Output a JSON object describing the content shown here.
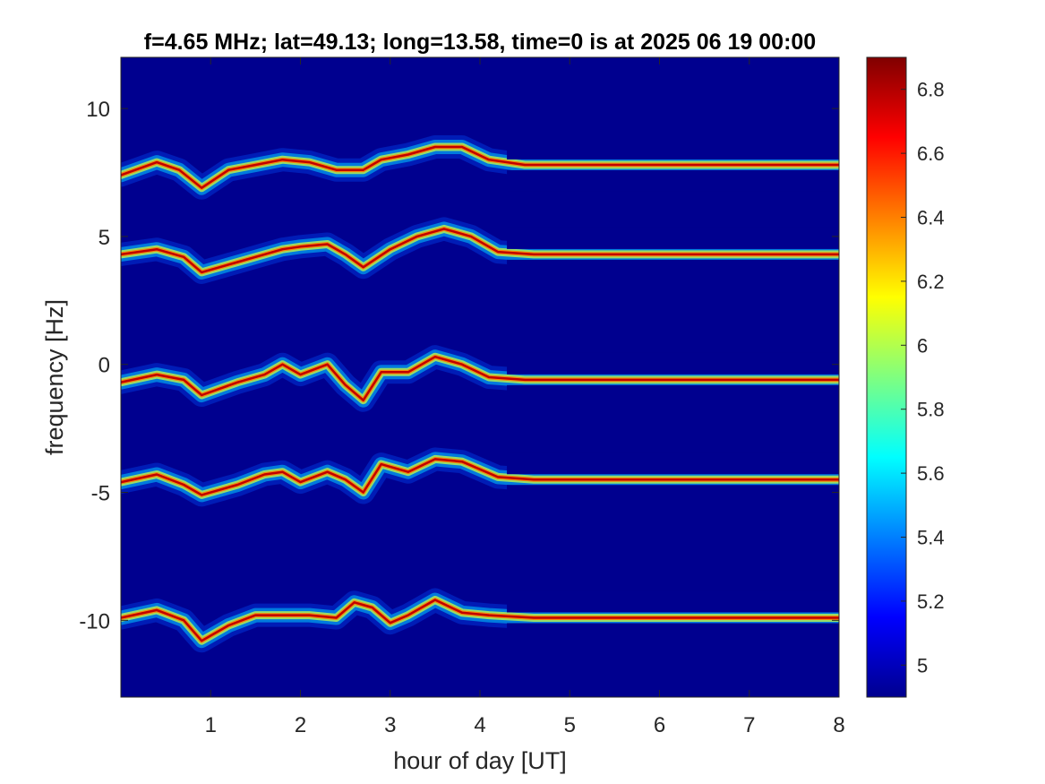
{
  "chart_data": {
    "type": "heatmap",
    "title": "f=4.65 MHz;  lat=49.13; long=13.58, time=0 is at 2025 06 19 00:00",
    "xlabel": "hour of day [UT]",
    "ylabel": "frequency [Hz]",
    "xlim": [
      0,
      8
    ],
    "ylim": [
      -13,
      12
    ],
    "x_ticks": [
      1,
      2,
      3,
      4,
      5,
      6,
      7,
      8
    ],
    "y_ticks": [
      10,
      5,
      0,
      -5,
      -10
    ],
    "colormap": "jet",
    "background_color": "#00008f",
    "colorbar": {
      "range": [
        4.9,
        6.9
      ],
      "ticks": [
        6.8,
        6.6,
        6.4,
        6.2,
        6,
        5.8,
        5.6,
        5.4,
        5.2,
        5
      ]
    },
    "traces": [
      {
        "offset": 8,
        "points": [
          [
            0,
            7.4
          ],
          [
            0.4,
            7.9
          ],
          [
            0.65,
            7.6
          ],
          [
            0.9,
            6.9
          ],
          [
            1.2,
            7.6
          ],
          [
            1.5,
            7.8
          ],
          [
            1.8,
            8.0
          ],
          [
            2.1,
            7.9
          ],
          [
            2.4,
            7.6
          ],
          [
            2.7,
            7.6
          ],
          [
            2.9,
            8.0
          ],
          [
            3.2,
            8.2
          ],
          [
            3.5,
            8.5
          ],
          [
            3.8,
            8.5
          ],
          [
            4.1,
            8.0
          ],
          [
            4.5,
            7.8
          ],
          [
            5,
            7.8
          ],
          [
            6,
            7.8
          ],
          [
            7,
            7.8
          ],
          [
            8,
            7.8
          ]
        ]
      },
      {
        "offset": 4.5,
        "points": [
          [
            0,
            4.3
          ],
          [
            0.4,
            4.5
          ],
          [
            0.7,
            4.2
          ],
          [
            0.9,
            3.6
          ],
          [
            1.3,
            4.0
          ],
          [
            1.6,
            4.3
          ],
          [
            1.8,
            4.5
          ],
          [
            2.0,
            4.6
          ],
          [
            2.3,
            4.7
          ],
          [
            2.5,
            4.3
          ],
          [
            2.7,
            3.8
          ],
          [
            3.0,
            4.5
          ],
          [
            3.3,
            5.0
          ],
          [
            3.6,
            5.3
          ],
          [
            3.9,
            5.0
          ],
          [
            4.2,
            4.4
          ],
          [
            4.6,
            4.3
          ],
          [
            5.5,
            4.3
          ],
          [
            8,
            4.3
          ]
        ]
      },
      {
        "offset": -0.5,
        "points": [
          [
            0,
            -0.7
          ],
          [
            0.4,
            -0.4
          ],
          [
            0.7,
            -0.6
          ],
          [
            0.9,
            -1.2
          ],
          [
            1.3,
            -0.7
          ],
          [
            1.6,
            -0.4
          ],
          [
            1.8,
            0.0
          ],
          [
            2.0,
            -0.4
          ],
          [
            2.3,
            0.0
          ],
          [
            2.5,
            -0.8
          ],
          [
            2.7,
            -1.4
          ],
          [
            2.9,
            -0.3
          ],
          [
            3.2,
            -0.3
          ],
          [
            3.5,
            0.3
          ],
          [
            3.8,
            0.0
          ],
          [
            4.1,
            -0.5
          ],
          [
            4.5,
            -0.6
          ],
          [
            5.5,
            -0.6
          ],
          [
            8,
            -0.6
          ]
        ]
      },
      {
        "offset": -4.5,
        "points": [
          [
            0,
            -4.6
          ],
          [
            0.4,
            -4.3
          ],
          [
            0.7,
            -4.7
          ],
          [
            0.9,
            -5.1
          ],
          [
            1.3,
            -4.7
          ],
          [
            1.6,
            -4.3
          ],
          [
            1.8,
            -4.2
          ],
          [
            2.0,
            -4.6
          ],
          [
            2.3,
            -4.2
          ],
          [
            2.5,
            -4.5
          ],
          [
            2.7,
            -5.0
          ],
          [
            2.9,
            -3.9
          ],
          [
            3.2,
            -4.2
          ],
          [
            3.5,
            -3.7
          ],
          [
            3.8,
            -3.8
          ],
          [
            4.2,
            -4.4
          ],
          [
            4.6,
            -4.5
          ],
          [
            5.5,
            -4.5
          ],
          [
            8,
            -4.5
          ]
        ]
      },
      {
        "offset": -10,
        "points": [
          [
            0,
            -9.9
          ],
          [
            0.4,
            -9.6
          ],
          [
            0.7,
            -10.0
          ],
          [
            0.9,
            -10.8
          ],
          [
            1.2,
            -10.2
          ],
          [
            1.5,
            -9.8
          ],
          [
            1.8,
            -9.8
          ],
          [
            2.1,
            -9.8
          ],
          [
            2.4,
            -9.9
          ],
          [
            2.6,
            -9.3
          ],
          [
            2.8,
            -9.5
          ],
          [
            3.0,
            -10.1
          ],
          [
            3.2,
            -9.8
          ],
          [
            3.5,
            -9.2
          ],
          [
            3.8,
            -9.7
          ],
          [
            4.1,
            -9.8
          ],
          [
            4.6,
            -9.9
          ],
          [
            5.5,
            -9.9
          ],
          [
            8,
            -9.9
          ]
        ]
      }
    ]
  }
}
